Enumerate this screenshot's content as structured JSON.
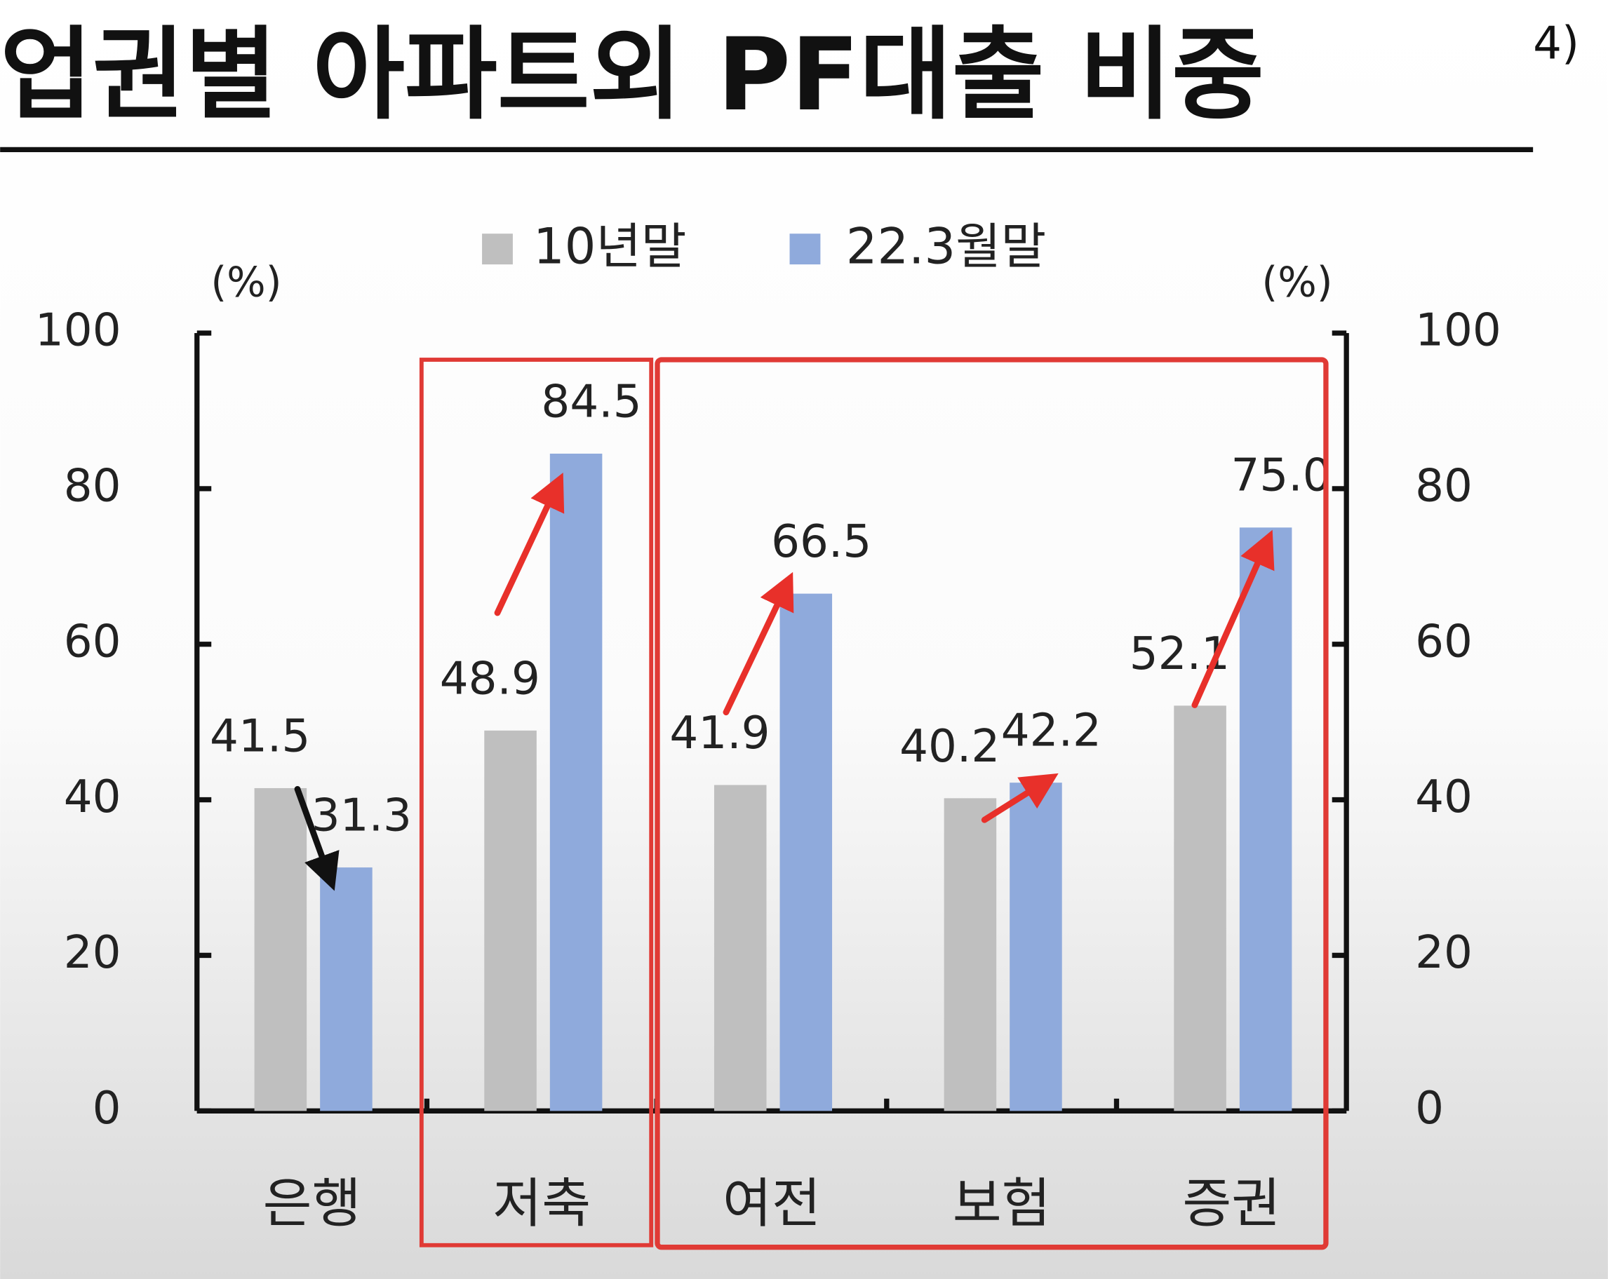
{
  "chart_data": {
    "type": "bar",
    "title": "업권별 아파트외 PF대출 비중",
    "title_note": "4)",
    "y_label": "(%)",
    "y2_label": "(%)",
    "categories": [
      "은행",
      "저축",
      "여전",
      "보험",
      "증권"
    ],
    "series": [
      {
        "name": "10년말",
        "color": "#bfbfbf",
        "values": [
          41.5,
          48.9,
          41.9,
          40.2,
          52.1
        ]
      },
      {
        "name": "22.3월말",
        "color": "#8faadc",
        "values": [
          31.3,
          84.5,
          66.5,
          42.2,
          75
        ],
        "value_labels": [
          "31.3",
          "84.5",
          "66.5",
          "42.2",
          "75.0"
        ]
      }
    ],
    "ylim": [
      0,
      100
    ],
    "yticks": [
      0,
      20,
      40,
      60,
      80,
      100
    ],
    "y2lim": [
      0,
      100
    ],
    "y2ticks": [
      0,
      20,
      40,
      60,
      80,
      100
    ],
    "grid": false
  }
}
